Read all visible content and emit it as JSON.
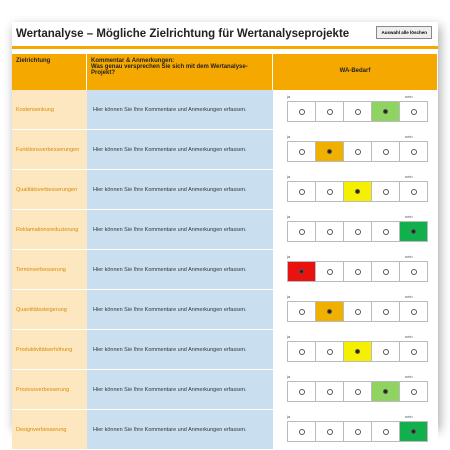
{
  "title": "Wertanalyse – Mögliche Zielrichtung für Wertanalyseprojekte",
  "button": "Auswahl alle löschen",
  "header": {
    "col1": "Zielrichtung",
    "col2_line1": "Kommentar & Anmerkungen:",
    "col2_line2": "Was genau versprechen Sie sich mit dem Wertanalyse-Projekt?",
    "col3": "WA-Bedarf"
  },
  "rating": {
    "low_label": "ja",
    "high_label": "nein",
    "options": 5,
    "colors": [
      "#e8130f",
      "#f0b000",
      "#f5f000",
      "#8fd461",
      "#12b04c"
    ]
  },
  "rows": [
    {
      "label": "Kostensenkung",
      "comment": "Hier können Sie Ihre Kommentare und Anmerkungen erfassen.",
      "selected": 4
    },
    {
      "label": "Funktionsverbesserungen",
      "comment": "Hier können Sie Ihre Kommentare und Anmerkungen erfassen.",
      "selected": 2
    },
    {
      "label": "Qualitätsverbesserungen",
      "comment": "Hier können Sie Ihre Kommentare und Anmerkungen erfassen.",
      "selected": 3
    },
    {
      "label": "Reklamationsreduzierung",
      "comment": "Hier können Sie Ihre Kommentare und Anmerkungen erfassen.",
      "selected": 5
    },
    {
      "label": "Terminverbesserung",
      "comment": "Hier können Sie Ihre Kommentare und Anmerkungen erfassen.",
      "selected": 1
    },
    {
      "label": "Quantitätssteigerung",
      "comment": "Hier können Sie Ihre Kommentare und Anmerkungen erfassen.",
      "selected": 2
    },
    {
      "label": "Produktivitätserhöhung",
      "comment": "Hier können Sie Ihre Kommentare und Anmerkungen erfassen.",
      "selected": 3
    },
    {
      "label": "Prozessverbesserung",
      "comment": "Hier können Sie Ihre Kommentare und Anmerkungen erfassen.",
      "selected": 4
    },
    {
      "label": "Designverbesserung",
      "comment": "Hier können Sie Ihre Kommentare und Anmerkungen erfassen.",
      "selected": 5
    }
  ]
}
